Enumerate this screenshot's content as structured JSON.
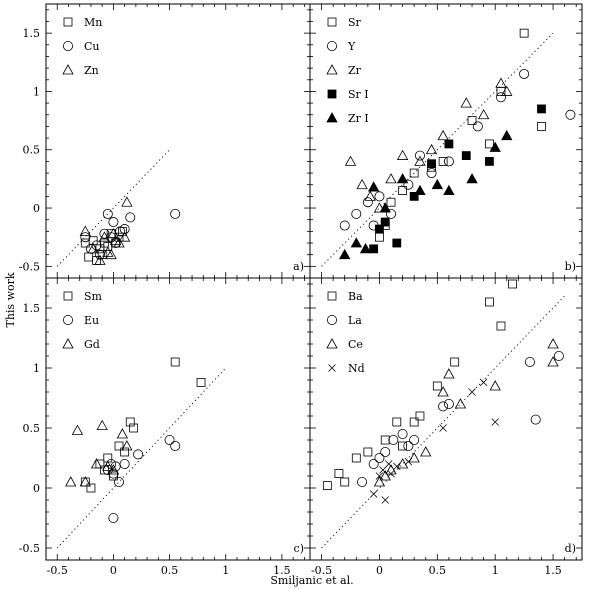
{
  "xlabel": "Smiljanic et al.",
  "ylabel": "This work",
  "xlim": [
    -0.6,
    1.75
  ],
  "ylim": [
    -0.6,
    1.75
  ],
  "x_ticks": [
    -0.5,
    0,
    0.5,
    1,
    1.5
  ],
  "y_ticks": [
    -0.5,
    0,
    0.5,
    1,
    1.5
  ],
  "chart_data": [
    {
      "type": "scatter",
      "panel": "a)",
      "xlim": [
        -0.6,
        1.75
      ],
      "ylim": [
        -0.6,
        1.75
      ],
      "diagonal": [
        -0.5,
        0.5
      ],
      "series": [
        {
          "name": "Mn",
          "marker": "square",
          "x": [
            -0.25,
            -0.22,
            -0.18,
            -0.15,
            -0.12,
            -0.1,
            -0.08,
            -0.05,
            -0.02,
            0.02,
            0.05,
            0.08
          ],
          "y": [
            -0.3,
            -0.42,
            -0.28,
            -0.45,
            -0.35,
            -0.4,
            -0.3,
            -0.33,
            -0.22,
            -0.3,
            -0.25,
            -0.2
          ]
        },
        {
          "name": "Cu",
          "marker": "circle",
          "x": [
            -0.25,
            -0.2,
            -0.15,
            -0.12,
            -0.08,
            -0.05,
            -0.02,
            0,
            0.02,
            0.06,
            0.1,
            0.15,
            0.55
          ],
          "y": [
            -0.25,
            -0.35,
            -0.32,
            -0.4,
            -0.22,
            -0.05,
            -0.25,
            -0.12,
            -0.3,
            -0.2,
            -0.18,
            -0.08,
            -0.05
          ]
        },
        {
          "name": "Zn",
          "marker": "triangle",
          "x": [
            -0.25,
            -0.18,
            -0.12,
            -0.08,
            -0.05,
            -0.02,
            0,
            0.02,
            0.05,
            0.1,
            0.12
          ],
          "y": [
            -0.2,
            -0.35,
            -0.45,
            -0.25,
            -0.38,
            -0.4,
            -0.22,
            -0.28,
            -0.3,
            -0.25,
            0.05
          ]
        }
      ]
    },
    {
      "type": "scatter",
      "panel": "b)",
      "xlim": [
        -0.6,
        1.75
      ],
      "ylim": [
        -0.6,
        1.75
      ],
      "diagonal": [
        -0.5,
        1.5
      ],
      "series": [
        {
          "name": "Sr",
          "marker": "square",
          "x": [
            0,
            0.05,
            0.1,
            0.2,
            0.3,
            0.45,
            0.55,
            0.8,
            0.95,
            1.05,
            1.25,
            1.4
          ],
          "y": [
            -0.25,
            -0.15,
            0.05,
            0.15,
            0.3,
            0.35,
            0.4,
            0.75,
            0.55,
            1.0,
            1.5,
            0.7
          ]
        },
        {
          "name": "Y",
          "marker": "circle",
          "x": [
            -0.3,
            -0.2,
            -0.1,
            -0.05,
            0,
            0.1,
            0.25,
            0.35,
            0.45,
            0.6,
            0.85,
            1.05,
            1.25,
            1.65
          ],
          "y": [
            -0.15,
            -0.05,
            0.05,
            -0.15,
            0.1,
            -0.05,
            0.2,
            0.45,
            0.3,
            0.4,
            0.7,
            0.95,
            1.15,
            0.8
          ]
        },
        {
          "name": "Zr",
          "marker": "triangle",
          "x": [
            -0.25,
            -0.15,
            -0.08,
            0,
            0.1,
            0.2,
            0.35,
            0.45,
            0.55,
            0.75,
            0.9,
            1.05,
            1.1
          ],
          "y": [
            0.4,
            0.2,
            0.1,
            0.0,
            0.25,
            0.45,
            0.4,
            0.5,
            0.62,
            0.9,
            0.8,
            1.07,
            1.0
          ]
        },
        {
          "name": "Sr I",
          "marker": "square-filled",
          "x": [
            -0.05,
            0.0,
            0.05,
            0.15,
            0.3,
            0.45,
            0.6,
            0.75,
            0.95,
            1.4
          ],
          "y": [
            -0.35,
            -0.18,
            -0.12,
            -0.3,
            0.1,
            0.38,
            0.55,
            0.45,
            0.4,
            0.85
          ]
        },
        {
          "name": "Zr I",
          "marker": "triangle-filled",
          "x": [
            -0.3,
            -0.2,
            -0.12,
            -0.05,
            0.05,
            0.2,
            0.35,
            0.5,
            0.6,
            0.8,
            1.0,
            1.1
          ],
          "y": [
            -0.4,
            -0.3,
            -0.35,
            0.18,
            0.0,
            0.25,
            0.15,
            0.2,
            0.15,
            0.25,
            0.52,
            0.62
          ]
        }
      ]
    },
    {
      "type": "scatter",
      "panel": "c)",
      "xlim": [
        -0.6,
        1.75
      ],
      "ylim": [
        -0.6,
        1.75
      ],
      "diagonal": [
        -0.5,
        1.0
      ],
      "series": [
        {
          "name": "Sm",
          "marker": "square",
          "x": [
            -0.25,
            -0.2,
            -0.12,
            -0.08,
            -0.05,
            0,
            0.05,
            0.1,
            0.15,
            0.18,
            0.55,
            0.78
          ],
          "y": [
            0.05,
            0.0,
            0.2,
            0.15,
            0.25,
            0.1,
            0.35,
            0.3,
            0.55,
            0.5,
            1.05,
            0.88
          ]
        },
        {
          "name": "Eu",
          "marker": "circle",
          "x": [
            -0.05,
            -0.02,
            0.0,
            0.02,
            0.05,
            0.1,
            0.22,
            0.5,
            0.55,
            0.0
          ],
          "y": [
            0.15,
            0.2,
            0.12,
            0.18,
            0.05,
            0.2,
            0.28,
            0.4,
            0.35,
            -0.25
          ]
        },
        {
          "name": "Gd",
          "marker": "triangle",
          "x": [
            -0.38,
            -0.32,
            -0.25,
            -0.15,
            -0.1,
            -0.05,
            0.0,
            0.08,
            0.12
          ],
          "y": [
            0.05,
            0.48,
            0.05,
            0.2,
            0.52,
            0.18,
            0.15,
            0.45,
            0.35
          ]
        }
      ]
    },
    {
      "type": "scatter",
      "panel": "d)",
      "xlim": [
        -0.6,
        1.75
      ],
      "ylim": [
        -0.6,
        1.75
      ],
      "diagonal": [
        -0.5,
        1.6
      ],
      "series": [
        {
          "name": "Ba",
          "marker": "square",
          "x": [
            -0.45,
            -0.35,
            -0.3,
            -0.2,
            -0.1,
            0.05,
            0.15,
            0.2,
            0.3,
            0.35,
            0.5,
            0.65,
            0.95,
            1.05,
            1.15
          ],
          "y": [
            0.02,
            0.12,
            0.05,
            0.25,
            0.3,
            0.4,
            0.55,
            0.35,
            0.55,
            0.6,
            0.85,
            1.05,
            1.55,
            1.35,
            1.7
          ]
        },
        {
          "name": "La",
          "marker": "circle",
          "x": [
            -0.15,
            -0.05,
            0.0,
            0.05,
            0.12,
            0.2,
            0.25,
            0.3,
            0.55,
            0.6,
            1.3,
            1.35,
            1.55
          ],
          "y": [
            0.05,
            0.2,
            0.25,
            0.3,
            0.4,
            0.45,
            0.35,
            0.4,
            0.68,
            0.7,
            1.05,
            0.57,
            1.1
          ]
        },
        {
          "name": "Ce",
          "marker": "triangle",
          "x": [
            0.0,
            0.05,
            0.1,
            0.2,
            0.3,
            0.4,
            0.55,
            0.6,
            0.7,
            1.0,
            1.5,
            1.5
          ],
          "y": [
            0.05,
            0.1,
            0.15,
            0.2,
            0.25,
            0.3,
            0.8,
            0.95,
            0.7,
            0.85,
            1.05,
            1.2
          ]
        },
        {
          "name": "Nd",
          "marker": "cross",
          "x": [
            -0.05,
            0.0,
            0.03,
            0.05,
            0.08,
            0.1,
            0.15,
            0.25,
            0.55,
            0.8,
            0.9,
            1.0
          ],
          "y": [
            -0.05,
            0.1,
            0.15,
            -0.1,
            0.2,
            0.12,
            0.18,
            0.22,
            0.5,
            0.8,
            0.88,
            0.55
          ]
        }
      ]
    }
  ]
}
